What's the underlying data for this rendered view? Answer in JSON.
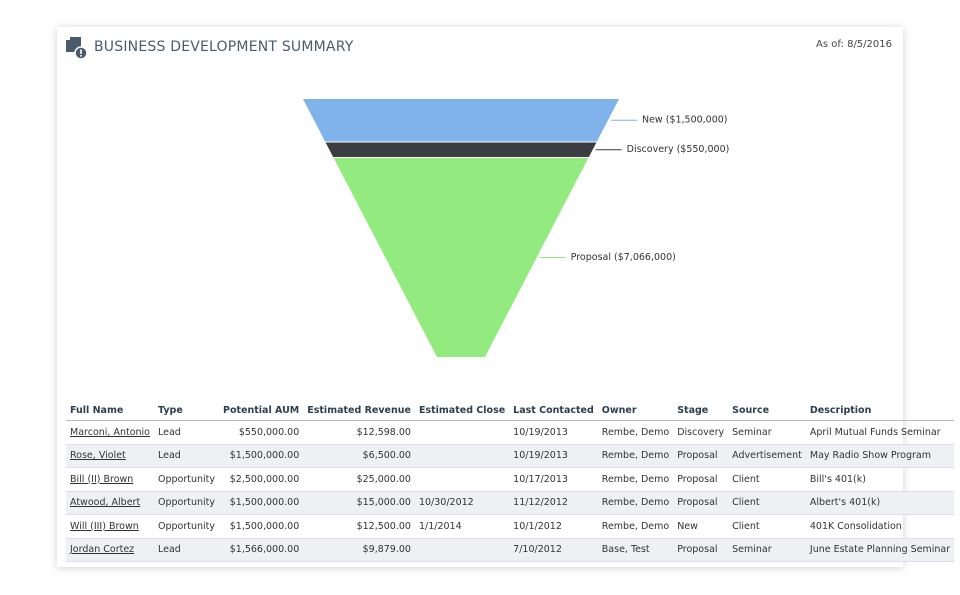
{
  "header": {
    "title": "BUSINESS DEVELOPMENT SUMMARY",
    "as_of": "As of: 8/5/2016"
  },
  "chart_data": {
    "type": "funnel",
    "categories": [
      "New",
      "Discovery",
      "Proposal"
    ],
    "values": [
      1500000,
      550000,
      7066000
    ],
    "value_labels": [
      "New ($1,500,000)",
      "Discovery ($550,000)",
      "Proposal ($7,066,000)"
    ],
    "colors": [
      "#7fb3e9",
      "#3b3d42",
      "#93eb80"
    ]
  },
  "table": {
    "columns": [
      "Full Name",
      "Type",
      "Potential AUM",
      "Estimated Revenue",
      "Estimated Close",
      "Last Contacted",
      "Owner",
      "Stage",
      "Source",
      "Description"
    ],
    "rows": [
      [
        "Marconi, Antonio",
        "Lead",
        "$550,000.00",
        "$12,598.00",
        "",
        "10/19/2013",
        "Rembe, Demo",
        "Discovery",
        "Seminar",
        "April Mutual Funds Seminar"
      ],
      [
        "Rose, Violet",
        "Lead",
        "$1,500,000.00",
        "$6,500.00",
        "",
        "10/19/2013",
        "Rembe, Demo",
        "Proposal",
        "Advertisement",
        "May Radio Show Program"
      ],
      [
        "Bill (II) Brown",
        "Opportunity",
        "$2,500,000.00",
        "$25,000.00",
        "",
        "10/17/2013",
        "Rembe, Demo",
        "Proposal",
        "Client",
        "Bill's 401(k)"
      ],
      [
        "Atwood, Albert",
        "Opportunity",
        "$1,500,000.00",
        "$15,000.00",
        "10/30/2012",
        "11/12/2012",
        "Rembe, Demo",
        "Proposal",
        "Client",
        "Albert's 401(k)"
      ],
      [
        "Will (III) Brown",
        "Opportunity",
        "$1,500,000.00",
        "$12,500.00",
        "1/1/2014",
        "10/1/2012",
        "Rembe, Demo",
        "New",
        "Client",
        "401K Consolidation"
      ],
      [
        "Jordan Cortez",
        "Lead",
        "$1,566,000.00",
        "$9,879.00",
        "",
        "7/10/2012",
        "Base, Test",
        "Proposal",
        "Seminar",
        "June Estate Planning Seminar"
      ]
    ]
  }
}
